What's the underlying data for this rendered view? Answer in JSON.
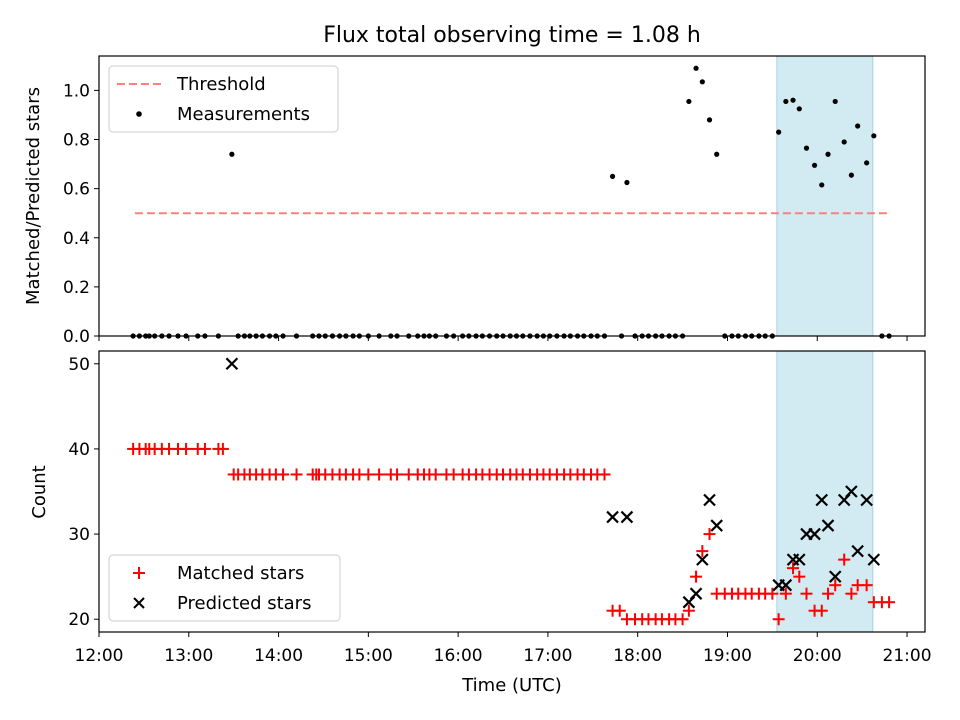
{
  "chart_data": [
    {
      "type": "scatter",
      "panel": "top",
      "title": "Flux total observing time = 1.08 h",
      "xlabel": "",
      "ylabel": "Matched/Predicted stars",
      "xlim": [
        12.0,
        21.2
      ],
      "ylim": [
        0.0,
        1.14
      ],
      "yticks": [
        0.0,
        0.2,
        0.4,
        0.6,
        0.8,
        1.0
      ],
      "yticklabels": [
        "0.0",
        "0.2",
        "0.4",
        "0.6",
        "0.8",
        "1.0"
      ],
      "shaded_span": [
        19.55,
        20.62
      ],
      "threshold": {
        "name": "Threshold",
        "y": 0.5,
        "x": [
          12.4,
          20.8
        ],
        "color": "#ff7f7f"
      },
      "series": [
        {
          "name": "Measurements",
          "color": "#000000",
          "points": [
            [
              12.38,
              0
            ],
            [
              12.45,
              0
            ],
            [
              12.52,
              0
            ],
            [
              12.56,
              0
            ],
            [
              12.62,
              0
            ],
            [
              12.7,
              0
            ],
            [
              12.78,
              0
            ],
            [
              12.88,
              0
            ],
            [
              12.97,
              0
            ],
            [
              13.1,
              0
            ],
            [
              13.18,
              0
            ],
            [
              13.33,
              0
            ],
            [
              13.48,
              0.74
            ],
            [
              13.55,
              0
            ],
            [
              13.62,
              0
            ],
            [
              13.68,
              0
            ],
            [
              13.75,
              0
            ],
            [
              13.82,
              0
            ],
            [
              13.9,
              0
            ],
            [
              13.97,
              0
            ],
            [
              14.05,
              0
            ],
            [
              14.2,
              0
            ],
            [
              14.38,
              0
            ],
            [
              14.45,
              0
            ],
            [
              14.52,
              0
            ],
            [
              14.6,
              0
            ],
            [
              14.68,
              0
            ],
            [
              14.75,
              0
            ],
            [
              14.83,
              0
            ],
            [
              14.9,
              0
            ],
            [
              15.0,
              0
            ],
            [
              15.12,
              0
            ],
            [
              15.25,
              0
            ],
            [
              15.32,
              0
            ],
            [
              15.45,
              0
            ],
            [
              15.55,
              0
            ],
            [
              15.62,
              0
            ],
            [
              15.68,
              0
            ],
            [
              15.75,
              0
            ],
            [
              15.87,
              0
            ],
            [
              15.95,
              0
            ],
            [
              16.05,
              0
            ],
            [
              16.12,
              0
            ],
            [
              16.2,
              0
            ],
            [
              16.27,
              0
            ],
            [
              16.35,
              0
            ],
            [
              16.43,
              0
            ],
            [
              16.5,
              0
            ],
            [
              16.58,
              0
            ],
            [
              16.65,
              0
            ],
            [
              16.72,
              0
            ],
            [
              16.8,
              0
            ],
            [
              16.88,
              0
            ],
            [
              16.95,
              0
            ],
            [
              17.02,
              0
            ],
            [
              17.1,
              0
            ],
            [
              17.18,
              0
            ],
            [
              17.25,
              0
            ],
            [
              17.33,
              0
            ],
            [
              17.4,
              0
            ],
            [
              17.48,
              0
            ],
            [
              17.55,
              0
            ],
            [
              17.63,
              0
            ],
            [
              17.72,
              0.65
            ],
            [
              17.82,
              0
            ],
            [
              17.88,
              0.625
            ],
            [
              17.97,
              0
            ],
            [
              18.05,
              0
            ],
            [
              18.12,
              0
            ],
            [
              18.2,
              0
            ],
            [
              18.27,
              0
            ],
            [
              18.35,
              0
            ],
            [
              18.42,
              0
            ],
            [
              18.5,
              0
            ],
            [
              18.57,
              0.955
            ],
            [
              18.65,
              1.09
            ],
            [
              18.72,
              1.035
            ],
            [
              18.8,
              0.88
            ],
            [
              18.88,
              0.74
            ],
            [
              18.97,
              0
            ],
            [
              19.05,
              0
            ],
            [
              19.12,
              0
            ],
            [
              19.2,
              0
            ],
            [
              19.27,
              0
            ],
            [
              19.35,
              0
            ],
            [
              19.42,
              0
            ],
            [
              19.5,
              0
            ],
            [
              19.57,
              0.83
            ],
            [
              19.65,
              0.955
            ],
            [
              19.73,
              0.96
            ],
            [
              19.8,
              0.925
            ],
            [
              19.88,
              0.765
            ],
            [
              19.97,
              0.695
            ],
            [
              20.05,
              0.615
            ],
            [
              20.12,
              0.74
            ],
            [
              20.2,
              0.955
            ],
            [
              20.3,
              0.79
            ],
            [
              20.38,
              0.655
            ],
            [
              20.45,
              0.855
            ],
            [
              20.55,
              0.705
            ],
            [
              20.63,
              0.815
            ],
            [
              20.72,
              0
            ],
            [
              20.8,
              0
            ]
          ]
        }
      ],
      "legend": {
        "location": "upper-left",
        "entries": [
          "Threshold",
          "Measurements"
        ]
      }
    },
    {
      "type": "scatter",
      "panel": "bottom",
      "xlabel": "Time (UTC)",
      "ylabel": "Count",
      "xlim": [
        12.0,
        21.2
      ],
      "ylim": [
        18.5,
        51.5
      ],
      "yticks": [
        20,
        30,
        40,
        50
      ],
      "yticklabels": [
        "20",
        "30",
        "40",
        "50"
      ],
      "xticks": [
        12,
        13,
        14,
        15,
        16,
        17,
        18,
        19,
        20,
        21
      ],
      "xticklabels": [
        "12:00",
        "13:00",
        "14:00",
        "15:00",
        "16:00",
        "17:00",
        "18:00",
        "19:00",
        "20:00",
        "21:00"
      ],
      "shaded_span": [
        19.55,
        20.62
      ],
      "series": [
        {
          "name": "Matched stars",
          "marker": "plus",
          "color": "#ff0000",
          "points": [
            [
              12.38,
              40
            ],
            [
              12.45,
              40
            ],
            [
              12.52,
              40
            ],
            [
              12.56,
              40
            ],
            [
              12.62,
              40
            ],
            [
              12.7,
              40
            ],
            [
              12.78,
              40
            ],
            [
              12.88,
              40
            ],
            [
              12.97,
              40
            ],
            [
              13.1,
              40
            ],
            [
              13.18,
              40
            ],
            [
              13.33,
              40
            ],
            [
              13.38,
              40
            ],
            [
              13.5,
              37
            ],
            [
              13.55,
              37
            ],
            [
              13.62,
              37
            ],
            [
              13.68,
              37
            ],
            [
              13.75,
              37
            ],
            [
              13.82,
              37
            ],
            [
              13.9,
              37
            ],
            [
              13.97,
              37
            ],
            [
              14.05,
              37
            ],
            [
              14.2,
              37
            ],
            [
              14.38,
              37
            ],
            [
              14.42,
              37
            ],
            [
              14.45,
              37
            ],
            [
              14.52,
              37
            ],
            [
              14.6,
              37
            ],
            [
              14.68,
              37
            ],
            [
              14.75,
              37
            ],
            [
              14.83,
              37
            ],
            [
              14.9,
              37
            ],
            [
              15.0,
              37
            ],
            [
              15.12,
              37
            ],
            [
              15.25,
              37
            ],
            [
              15.32,
              37
            ],
            [
              15.45,
              37
            ],
            [
              15.55,
              37
            ],
            [
              15.62,
              37
            ],
            [
              15.68,
              37
            ],
            [
              15.75,
              37
            ],
            [
              15.87,
              37
            ],
            [
              15.95,
              37
            ],
            [
              16.05,
              37
            ],
            [
              16.12,
              37
            ],
            [
              16.2,
              37
            ],
            [
              16.27,
              37
            ],
            [
              16.35,
              37
            ],
            [
              16.43,
              37
            ],
            [
              16.5,
              37
            ],
            [
              16.58,
              37
            ],
            [
              16.65,
              37
            ],
            [
              16.72,
              37
            ],
            [
              16.8,
              37
            ],
            [
              16.88,
              37
            ],
            [
              16.95,
              37
            ],
            [
              17.02,
              37
            ],
            [
              17.1,
              37
            ],
            [
              17.18,
              37
            ],
            [
              17.25,
              37
            ],
            [
              17.33,
              37
            ],
            [
              17.4,
              37
            ],
            [
              17.48,
              37
            ],
            [
              17.55,
              37
            ],
            [
              17.63,
              37
            ],
            [
              17.72,
              21
            ],
            [
              17.8,
              21
            ],
            [
              17.88,
              20
            ],
            [
              17.97,
              20
            ],
            [
              18.05,
              20
            ],
            [
              18.12,
              20
            ],
            [
              18.2,
              20
            ],
            [
              18.27,
              20
            ],
            [
              18.35,
              20
            ],
            [
              18.42,
              20
            ],
            [
              18.5,
              20
            ],
            [
              18.57,
              21
            ],
            [
              18.65,
              25
            ],
            [
              18.72,
              28
            ],
            [
              18.8,
              30
            ],
            [
              18.88,
              23
            ],
            [
              18.97,
              23
            ],
            [
              19.05,
              23
            ],
            [
              19.12,
              23
            ],
            [
              19.2,
              23
            ],
            [
              19.27,
              23
            ],
            [
              19.35,
              23
            ],
            [
              19.42,
              23
            ],
            [
              19.5,
              23
            ],
            [
              19.57,
              20
            ],
            [
              19.65,
              23
            ],
            [
              19.73,
              26
            ],
            [
              19.8,
              25
            ],
            [
              19.88,
              23
            ],
            [
              19.97,
              21
            ],
            [
              20.05,
              21
            ],
            [
              20.12,
              23
            ],
            [
              20.2,
              24
            ],
            [
              20.3,
              27
            ],
            [
              20.38,
              23
            ],
            [
              20.45,
              24
            ],
            [
              20.55,
              24
            ],
            [
              20.63,
              22
            ],
            [
              20.72,
              22
            ],
            [
              20.8,
              22
            ]
          ]
        },
        {
          "name": "Predicted stars",
          "marker": "x",
          "color": "#000000",
          "points": [
            [
              13.48,
              50
            ],
            [
              17.72,
              32
            ],
            [
              17.88,
              32
            ],
            [
              18.57,
              22
            ],
            [
              18.65,
              23
            ],
            [
              18.72,
              27
            ],
            [
              18.8,
              34
            ],
            [
              18.88,
              31
            ],
            [
              19.57,
              24
            ],
            [
              19.65,
              24
            ],
            [
              19.73,
              27
            ],
            [
              19.8,
              27
            ],
            [
              19.88,
              30
            ],
            [
              19.97,
              30
            ],
            [
              20.05,
              34
            ],
            [
              20.12,
              31
            ],
            [
              20.2,
              25
            ],
            [
              20.3,
              34
            ],
            [
              20.38,
              35
            ],
            [
              20.45,
              28
            ],
            [
              20.55,
              34
            ],
            [
              20.63,
              27
            ]
          ]
        }
      ],
      "legend": {
        "location": "lower-left",
        "entries": [
          "Matched stars",
          "Predicted stars"
        ]
      }
    }
  ],
  "colors": {
    "shade": "#add8e6",
    "threshold": "#ff7f7f",
    "matched": "#ff0000",
    "predicted": "#000000"
  }
}
